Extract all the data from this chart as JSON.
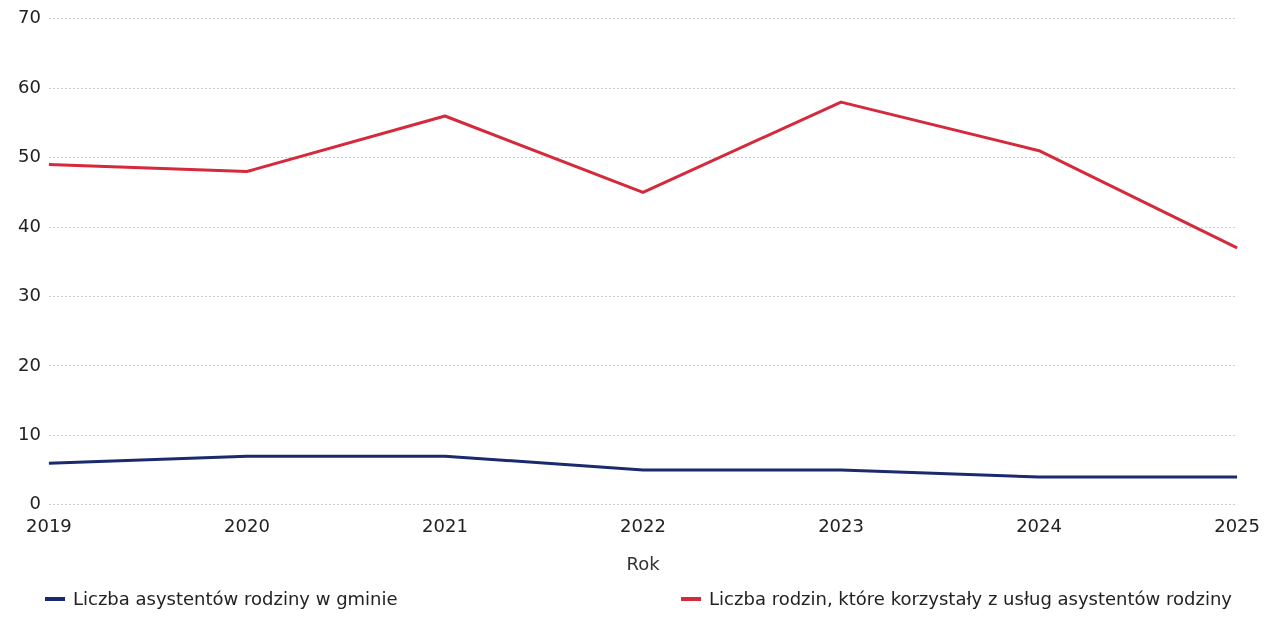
{
  "chart_data": {
    "type": "line",
    "xlabel": "Rok",
    "categories": [
      "2019",
      "2020",
      "2021",
      "2022",
      "2023",
      "2024",
      "2025"
    ],
    "series": [
      {
        "name": "Liczba asystentów rodziny w gminie",
        "color": "#1a2a6c",
        "values": [
          6,
          7,
          7,
          5,
          5,
          4,
          4
        ]
      },
      {
        "name": "Liczba rodzin, które korzystały z usług asystentów rodziny",
        "color": "#d42a3c",
        "values": [
          49,
          48,
          56,
          45,
          58,
          51,
          37
        ]
      }
    ],
    "ylim": [
      0,
      70
    ],
    "yticks": [
      0,
      10,
      20,
      30,
      40,
      50,
      60,
      70
    ],
    "grid": "y",
    "legend": "bottom"
  }
}
